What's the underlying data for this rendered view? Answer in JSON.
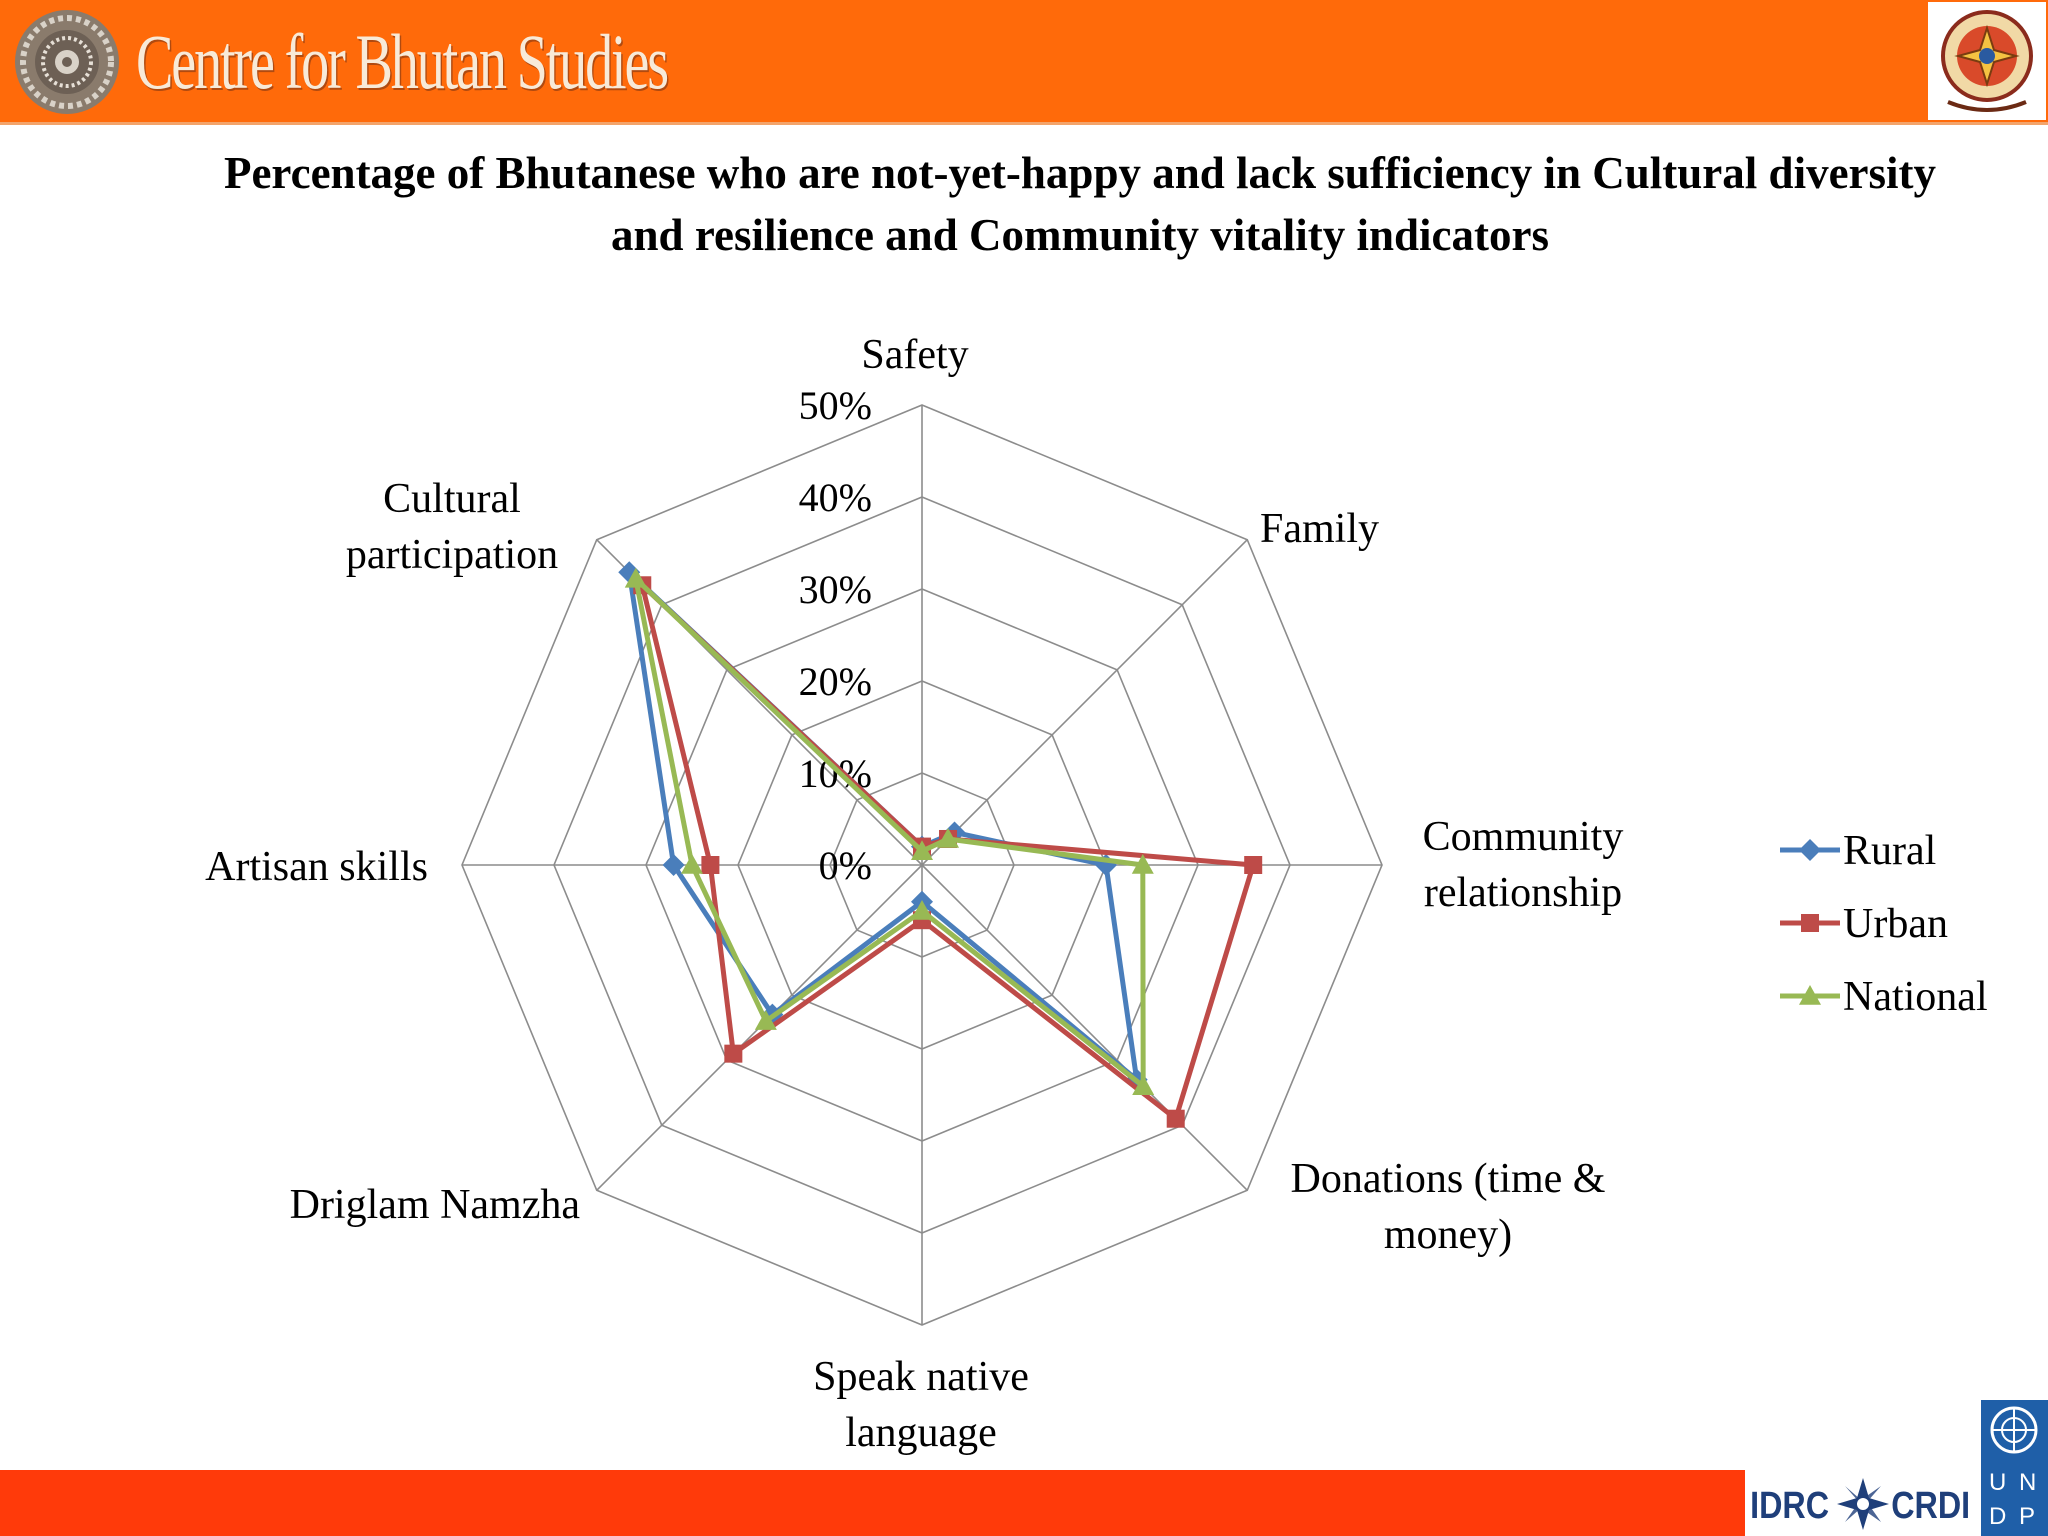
{
  "header": {
    "brand": "Centre for Bhutan Studies",
    "left_logo_icon": "dharma-wheel-icon",
    "right_logo_icon": "bhutan-emblem-icon"
  },
  "footer": {
    "idrc_left": "IDRC",
    "idrc_right": "CRDI",
    "idrc_icon": "idrc-star-icon",
    "undp_letters": [
      "U",
      "N",
      "D",
      "P"
    ],
    "undp_icon": "un-emblem-icon"
  },
  "colors": {
    "header": "#ff6a0a",
    "footer": "#ff3a0a",
    "rural": "#4a7ebb",
    "urban": "#be4b48",
    "national": "#98b954",
    "grid": "#8c8c8c"
  },
  "chart_data": {
    "type": "radar",
    "title": "Percentage of Bhutanese who are not-yet-happy and lack sufficiency in Cultural diversity and resilience and Community vitality indicators",
    "categories": [
      "Safety",
      "Family",
      "Community relationship",
      "Donations (time & money)",
      "Speak native language",
      "Driglam Namzha",
      "Artisan skills",
      "Cultural participation"
    ],
    "ticks": [
      "0%",
      "10%",
      "20%",
      "30%",
      "40%",
      "50%"
    ],
    "rmax": 50,
    "grid": true,
    "legend_position": "right",
    "series": [
      {
        "name": "Rural",
        "color": "#4a7ebb",
        "marker": "diamond",
        "values": [
          2,
          5,
          20,
          33,
          4,
          23,
          27,
          45
        ]
      },
      {
        "name": "Urban",
        "color": "#be4b48",
        "marker": "square",
        "values": [
          2,
          4,
          36,
          39,
          6,
          29,
          23,
          43
        ]
      },
      {
        "name": "National",
        "color": "#98b954",
        "marker": "triangle",
        "values": [
          1.5,
          4,
          24,
          34,
          5,
          24,
          25,
          44
        ]
      }
    ]
  }
}
